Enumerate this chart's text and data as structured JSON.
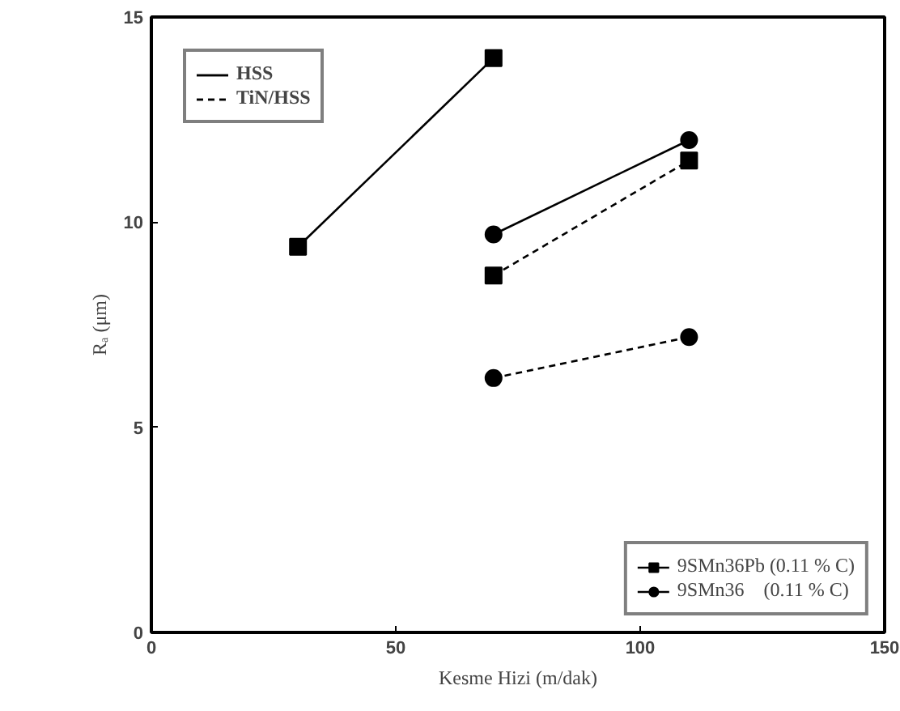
{
  "chart_data": {
    "type": "line",
    "xlabel": "Kesme Hizi (m/dak)",
    "ylabel": "Rₐ (μm)",
    "xlim": [
      0,
      150
    ],
    "xticks": [
      0,
      50,
      100,
      150
    ],
    "ylim": [
      0,
      15
    ],
    "yticks": [
      0,
      5,
      10,
      15
    ],
    "grid": false,
    "legend": "bottom right",
    "annotations": [
      "HSS",
      "TiN/HSS"
    ],
    "series": [
      {
        "name": "9SMn36Pb (0.11 % C)",
        "color": "#000000",
        "marker": "square",
        "line_style": "solid",
        "x": [
          30,
          70
        ],
        "values": [
          9.4,
          14.0
        ]
      },
      {
        "color": "#000000",
        "marker": "square",
        "line_style": "dashed",
        "x": [
          70,
          110
        ],
        "values": [
          8.7,
          11.5
        ]
      },
      {
        "name": "9SMn36    (0.11 % C)",
        "color": "#000000",
        "marker": "circle",
        "line_style": "solid",
        "x": [
          70,
          110
        ],
        "values": [
          9.7,
          12.0
        ]
      },
      {
        "color": "#000000",
        "marker": "circle",
        "line_style": "dashed",
        "x": [
          70,
          110
        ],
        "values": [
          6.2,
          7.2
        ]
      }
    ]
  }
}
